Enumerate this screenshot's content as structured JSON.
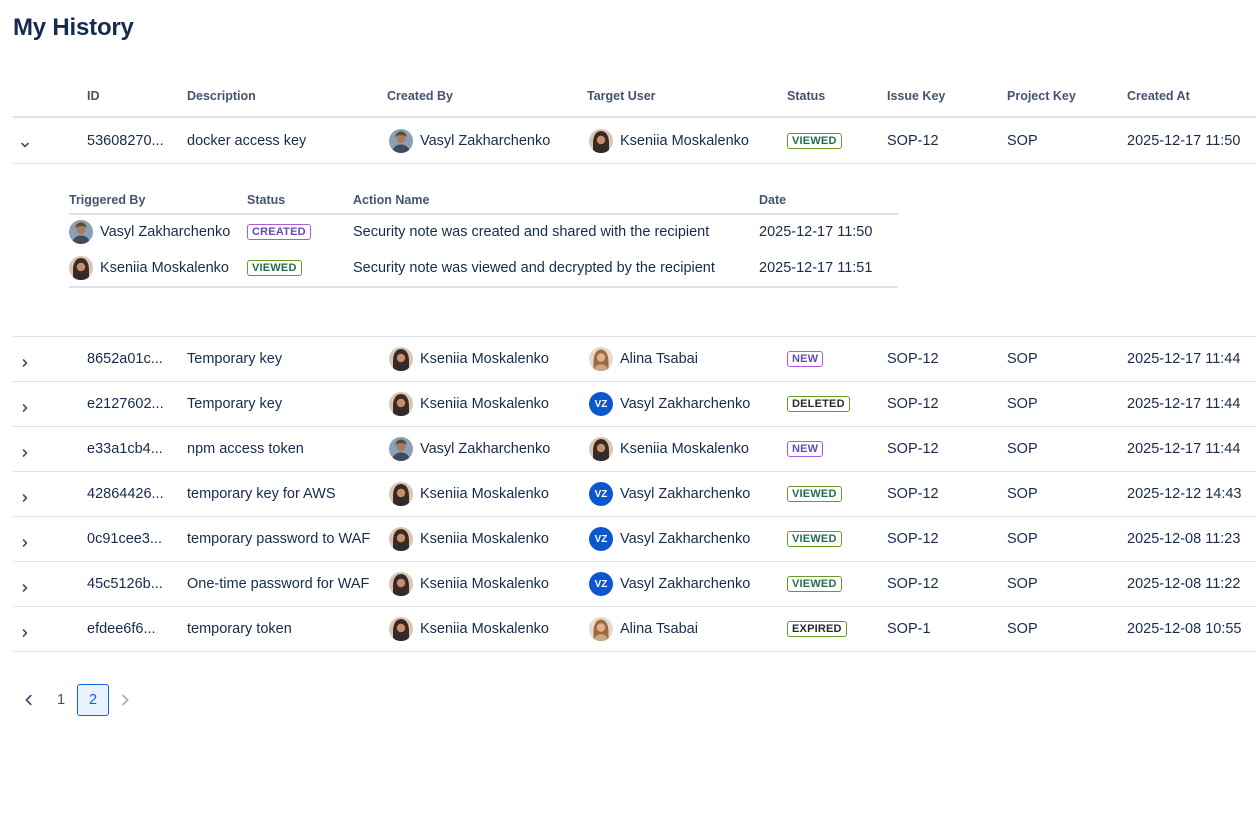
{
  "page": {
    "title": "My History"
  },
  "columns": {
    "id": "ID",
    "description": "Description",
    "created_by": "Created By",
    "target_user": "Target User",
    "status": "Status",
    "issue_key": "Issue Key",
    "project_key": "Project Key",
    "created_at": "Created At"
  },
  "rows": [
    {
      "id": "53608270...",
      "description": "docker access key",
      "created_by": "Vasyl Zakharchenko",
      "target_user": "Kseniia Moskalenko",
      "status": "VIEWED",
      "issue_key": "SOP-12",
      "project_key": "SOP",
      "created_at": "2025-12-17 11:50",
      "expanded": true
    },
    {
      "id": "8652a01c...",
      "description": "Temporary key",
      "created_by": "Kseniia Moskalenko",
      "target_user": "Alina Tsabai",
      "status": "NEW",
      "issue_key": "SOP-12",
      "project_key": "SOP",
      "created_at": "2025-12-17 11:44"
    },
    {
      "id": "e2127602...",
      "description": "Temporary key",
      "created_by": "Kseniia Moskalenko",
      "target_user": "Vasyl Zakharchenko",
      "target_initials": "VZ",
      "status": "DELETED",
      "issue_key": "SOP-12",
      "project_key": "SOP",
      "created_at": "2025-12-17 11:44"
    },
    {
      "id": "e33a1cb4...",
      "description": "npm access token",
      "created_by": "Vasyl Zakharchenko",
      "target_user": "Kseniia Moskalenko",
      "status": "NEW",
      "issue_key": "SOP-12",
      "project_key": "SOP",
      "created_at": "2025-12-17 11:44"
    },
    {
      "id": "42864426...",
      "description": "temporary key for AWS",
      "created_by": "Kseniia Moskalenko",
      "target_user": "Vasyl Zakharchenko",
      "target_initials": "VZ",
      "status": "VIEWED",
      "issue_key": "SOP-12",
      "project_key": "SOP",
      "created_at": "2025-12-12 14:43"
    },
    {
      "id": "0c91cee3...",
      "description": "temporary password to WAF",
      "created_by": "Kseniia Moskalenko",
      "target_user": "Vasyl Zakharchenko",
      "target_initials": "VZ",
      "status": "VIEWED",
      "issue_key": "SOP-12",
      "project_key": "SOP",
      "created_at": "2025-12-08 11:23"
    },
    {
      "id": "45c5126b...",
      "description": "One-time password for WAF",
      "created_by": "Kseniia Moskalenko",
      "target_user": "Vasyl Zakharchenko",
      "target_initials": "VZ",
      "status": "VIEWED",
      "issue_key": "SOP-12",
      "project_key": "SOP",
      "created_at": "2025-12-08 11:22"
    },
    {
      "id": "efdee6f6...",
      "description": "temporary token",
      "created_by": "Kseniia Moskalenko",
      "target_user": "Alina Tsabai",
      "status": "EXPIRED",
      "issue_key": "SOP-1",
      "project_key": "SOP",
      "created_at": "2025-12-08 10:55"
    }
  ],
  "history": {
    "columns": {
      "triggered_by": "Triggered By",
      "status": "Status",
      "action_name": "Action Name",
      "date": "Date"
    },
    "rows": [
      {
        "triggered_by": "Vasyl Zakharchenko",
        "status": "CREATED",
        "action_name": "Security note was created and shared with the recipient",
        "date": "2025-12-17 11:50"
      },
      {
        "triggered_by": "Kseniia Moskalenko",
        "status": "VIEWED",
        "action_name": "Security note was viewed and decrypted by the recipient",
        "date": "2025-12-17 11:51"
      }
    ]
  },
  "pagination": {
    "pages": [
      "1",
      "2"
    ],
    "current": "2"
  },
  "colors": {
    "accent": "#0c66e4",
    "text": "#172b4d",
    "subtle": "#44546f",
    "border": "#dfe1e6",
    "avatar_initials_bg": "#0b57d0"
  }
}
